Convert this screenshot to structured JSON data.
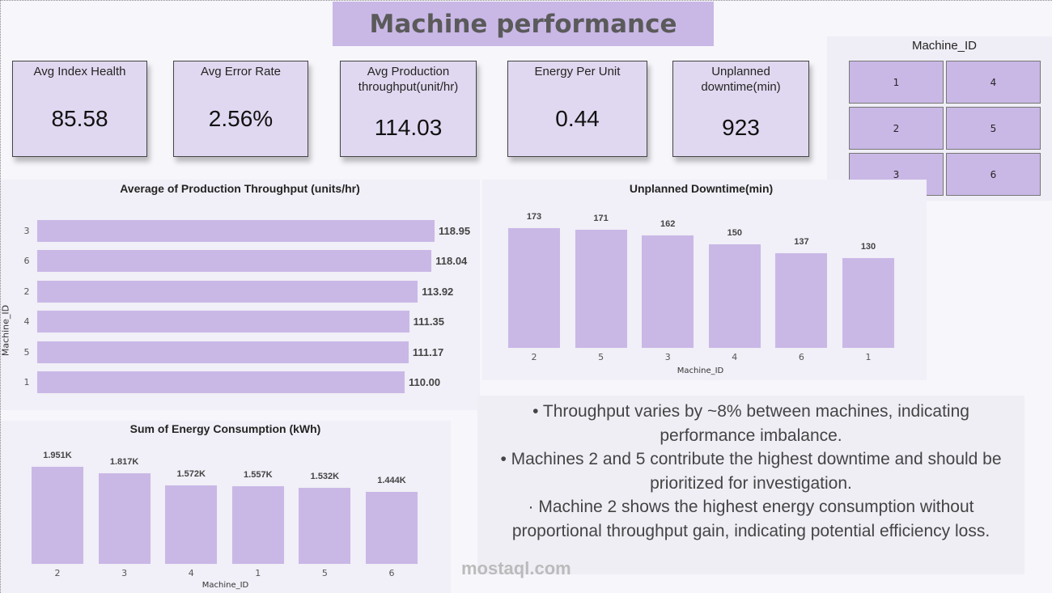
{
  "title": "Machine performance",
  "kpis": [
    {
      "label": "Avg Index Health",
      "value": "85.58"
    },
    {
      "label": "Avg Error Rate",
      "value": "2.56%"
    },
    {
      "label": "Avg Production throughput(unit/hr)",
      "value": "114.03"
    },
    {
      "label": "Energy Per Unit",
      "value": "0.44"
    },
    {
      "label": "Unplanned downtime(min)",
      "value": "923"
    }
  ],
  "slicer": {
    "title": "Machine_ID",
    "options": [
      "1",
      "4",
      "2",
      "5",
      "3",
      "6"
    ]
  },
  "colors": {
    "bar": "#c9b8e6",
    "card": "#e0d8f0",
    "title_bg": "#c9b8e6"
  },
  "chart_data": [
    {
      "type": "bar",
      "orientation": "horizontal",
      "title": "Average of Production Throughput (units/hr)",
      "ylabel": "Machine_ID",
      "categories": [
        "3",
        "6",
        "2",
        "4",
        "5",
        "1"
      ],
      "values": [
        118.95,
        118.04,
        113.92,
        111.35,
        111.17,
        110.0
      ],
      "labels": [
        "118.95",
        "118.04",
        "113.92",
        "111.35",
        "111.17",
        "110.00"
      ],
      "xlim": [
        0,
        119
      ]
    },
    {
      "type": "bar",
      "title": "Unplanned Downtime(min)",
      "xlabel": "Machine_ID",
      "categories": [
        "2",
        "5",
        "3",
        "4",
        "6",
        "1"
      ],
      "values": [
        173,
        171,
        162,
        150,
        137,
        130
      ],
      "labels": [
        "173",
        "171",
        "162",
        "150",
        "137",
        "130"
      ],
      "ylim": [
        0,
        173
      ]
    },
    {
      "type": "bar",
      "title": "Sum of Energy Consumption (kWh)",
      "xlabel": "Machine_ID",
      "categories": [
        "2",
        "3",
        "4",
        "1",
        "5",
        "6"
      ],
      "values": [
        1951,
        1817,
        1572,
        1557,
        1532,
        1444
      ],
      "labels": [
        "1.951K",
        "1.817K",
        "1.572K",
        "1.557K",
        "1.532K",
        "1.444K"
      ],
      "ylim": [
        0,
        1951
      ]
    }
  ],
  "notes": [
    "• Throughput varies by ~8% between machines, indicating performance imbalance.",
    "• Machines 2 and 5 contribute the highest downtime and should be prioritized for investigation.",
    "· Machine 2 shows the highest energy consumption without proportional throughput gain, indicating potential efficiency loss."
  ],
  "watermark": "mostaql.com"
}
